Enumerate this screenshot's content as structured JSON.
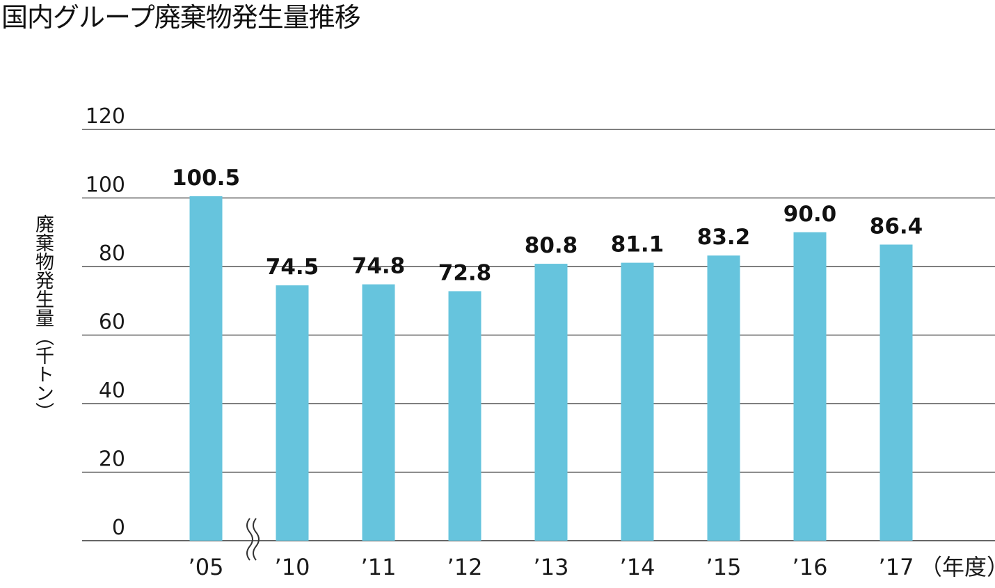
{
  "title": "国内グループ廃棄物発生量推移",
  "chart_data": {
    "type": "bar",
    "title": "国内グループ廃棄物発生量推移",
    "ylabel": "廃棄物発生量（千トン）",
    "xunit": "（年度）",
    "categories": [
      "’05",
      "’10",
      "’11",
      "’12",
      "’13",
      "’14",
      "’15",
      "’16",
      "’17"
    ],
    "values": [
      100.5,
      74.5,
      74.8,
      72.8,
      80.8,
      81.1,
      83.2,
      90.0,
      86.4
    ],
    "value_labels": [
      "100.5",
      "74.5",
      "74.8",
      "72.8",
      "80.8",
      "81.1",
      "83.2",
      "90.0",
      "86.4"
    ],
    "ylim": [
      0,
      120
    ],
    "yticks": [
      0,
      20,
      40,
      60,
      80,
      100,
      120
    ],
    "grid": true,
    "axis_break": "between ’05 and ’10",
    "bar_color": "#66c4dd",
    "grid_color": "#333333"
  }
}
